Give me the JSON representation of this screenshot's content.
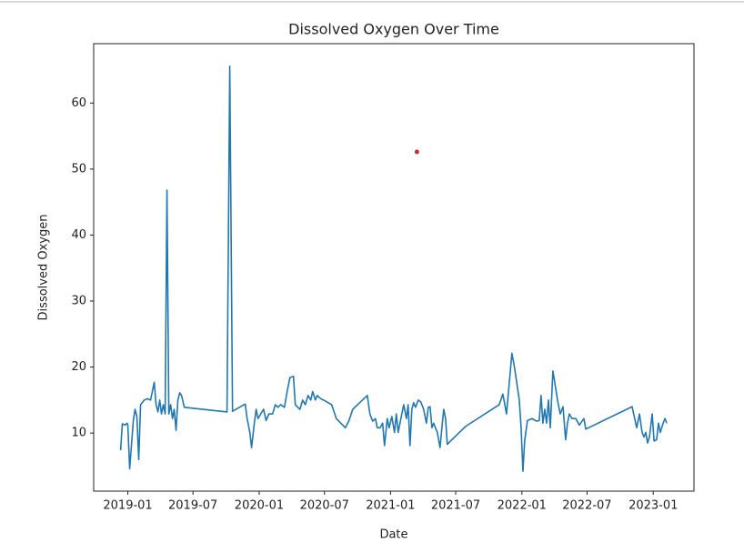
{
  "chart_data": {
    "type": "line",
    "title": "Dissolved Oxygen Over Time",
    "x_label": "Date",
    "y_label": "Dissolved Oxygen",
    "xlim": [
      2018.74,
      2023.31
    ],
    "ylim": [
      1.2,
      69.0
    ],
    "xticks": [
      {
        "value": 2019.0,
        "label": "2019-01"
      },
      {
        "value": 2019.496,
        "label": "2019-07"
      },
      {
        "value": 2020.0,
        "label": "2020-01"
      },
      {
        "value": 2020.497,
        "label": "2020-07"
      },
      {
        "value": 2021.0,
        "label": "2021-01"
      },
      {
        "value": 2021.496,
        "label": "2021-07"
      },
      {
        "value": 2022.0,
        "label": "2022-01"
      },
      {
        "value": 2022.496,
        "label": "2022-07"
      },
      {
        "value": 2023.0,
        "label": "2023-01"
      }
    ],
    "yticks": [
      10,
      20,
      30,
      40,
      50,
      60
    ],
    "grid": false,
    "series": [
      {
        "style": "line",
        "color": "#1f77b4",
        "x": [
          2018.945,
          2018.958,
          2018.979,
          2018.993,
          2019.0,
          2019.014,
          2019.042,
          2019.055,
          2019.069,
          2019.083,
          2019.097,
          2019.125,
          2019.152,
          2019.173,
          2019.201,
          2019.215,
          2019.229,
          2019.243,
          2019.256,
          2019.27,
          2019.284,
          2019.298,
          2019.312,
          2019.326,
          2019.34,
          2019.353,
          2019.367,
          2019.381,
          2019.395,
          2019.409,
          2019.43,
          2019.755,
          2019.776,
          2019.797,
          2019.894,
          2019.908,
          2019.929,
          2019.942,
          2019.963,
          2019.977,
          2019.991,
          2020.012,
          2020.033,
          2020.053,
          2020.074,
          2020.102,
          2020.123,
          2020.143,
          2020.164,
          2020.192,
          2020.213,
          2020.234,
          2020.261,
          2020.275,
          2020.31,
          2020.331,
          2020.351,
          2020.372,
          2020.393,
          2020.407,
          2020.428,
          2020.441,
          2020.469,
          2020.49,
          2020.552,
          2020.587,
          2020.656,
          2020.684,
          2020.712,
          2020.823,
          2020.843,
          2020.864,
          2020.885,
          2020.899,
          2020.92,
          2020.94,
          2020.954,
          2020.975,
          2020.989,
          2021.01,
          2021.03,
          2021.044,
          2021.058,
          2021.072,
          2021.1,
          2021.121,
          2021.134,
          2021.148,
          2021.162,
          2021.176,
          2021.19,
          2021.211,
          2021.231,
          2021.252,
          2021.273,
          2021.287,
          2021.301,
          2021.315,
          2021.328,
          2021.342,
          2021.356,
          2021.377,
          2021.391,
          2021.405,
          2021.419,
          2021.432,
          2021.571,
          2021.827,
          2021.855,
          2021.883,
          2021.924,
          2021.945,
          2021.98,
          2021.994,
          2022.008,
          2022.021,
          2022.042,
          2022.077,
          2022.112,
          2022.132,
          2022.146,
          2022.16,
          2022.174,
          2022.188,
          2022.202,
          2022.216,
          2022.236,
          2022.25,
          2022.271,
          2022.292,
          2022.313,
          2022.333,
          2022.347,
          2022.361,
          2022.382,
          2022.41,
          2022.437,
          2022.472,
          2022.486,
          2022.839,
          2022.874,
          2022.895,
          2022.915,
          2022.929,
          2022.943,
          2022.957,
          2022.971,
          2022.992,
          2023.006,
          2023.026,
          2023.04,
          2023.054,
          2023.075,
          2023.089,
          2023.103
        ],
        "values": [
          7.4,
          11.4,
          11.2,
          11.5,
          11.2,
          4.6,
          11.9,
          13.6,
          12.5,
          6.0,
          14.3,
          15.0,
          15.2,
          15.0,
          17.7,
          14.3,
          13.2,
          15.0,
          12.9,
          14.3,
          12.9,
          46.8,
          12.9,
          14.3,
          12.2,
          13.6,
          10.4,
          15.0,
          16.1,
          15.7,
          13.9,
          13.2,
          65.6,
          13.3,
          14.4,
          12.2,
          10.1,
          7.8,
          11.5,
          13.6,
          12.2,
          12.9,
          13.6,
          11.9,
          12.9,
          12.9,
          14.3,
          13.9,
          14.3,
          13.9,
          16.3,
          18.4,
          18.6,
          14.3,
          13.6,
          15.0,
          14.3,
          15.7,
          15.0,
          16.3,
          15.0,
          15.7,
          15.2,
          15.0,
          14.3,
          12.2,
          10.8,
          11.9,
          13.6,
          15.7,
          12.9,
          11.8,
          12.2,
          10.8,
          10.8,
          11.5,
          8.1,
          12.2,
          10.8,
          12.5,
          10.1,
          12.9,
          10.1,
          11.5,
          14.3,
          12.2,
          14.3,
          8.1,
          13.6,
          14.6,
          13.9,
          15.0,
          14.7,
          13.6,
          11.5,
          13.9,
          14.0,
          10.8,
          11.5,
          10.8,
          10.1,
          7.8,
          10.8,
          13.6,
          12.2,
          8.3,
          11.0,
          14.3,
          15.9,
          12.9,
          22.1,
          19.8,
          15.0,
          10.8,
          4.2,
          8.8,
          11.9,
          12.2,
          11.8,
          11.9,
          15.7,
          11.5,
          13.6,
          11.5,
          15.0,
          10.8,
          19.4,
          17.7,
          15.0,
          12.9,
          14.0,
          9.0,
          11.5,
          12.9,
          12.2,
          12.2,
          11.2,
          12.2,
          10.6,
          14.0,
          10.8,
          12.9,
          10.1,
          9.4,
          10.1,
          8.5,
          9.4,
          12.9,
          8.8,
          9.0,
          11.5,
          10.1,
          11.5,
          12.2,
          11.5
        ]
      },
      {
        "style": "dot",
        "color": "#d62728",
        "x": [
          2021.201
        ],
        "values": [
          52.6
        ]
      }
    ]
  }
}
